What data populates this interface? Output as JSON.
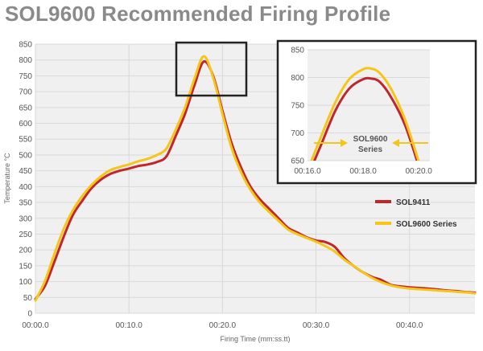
{
  "title": "SOL9600 Recommended Firing Profile",
  "colors": {
    "sol9411": "#c0272d",
    "sol9600": "#f5c518",
    "grid": "#d9d9d9",
    "plot_bg": "#f0f0f0"
  },
  "chart_data": [
    {
      "type": "line",
      "title": "SOL9600 Recommended Firing Profile",
      "xlabel": "Firing Time (mm:ss.tt)",
      "ylabel": "Temperature °C",
      "xlim": [
        0,
        47
      ],
      "ylim": [
        0,
        850
      ],
      "x_ticks": [
        0,
        10,
        20,
        30,
        40
      ],
      "x_tick_labels": [
        "00:00.0",
        "00:10.0",
        "00:20.0",
        "00:30.0",
        "00:40.0"
      ],
      "y_ticks": [
        0,
        50,
        100,
        150,
        200,
        250,
        300,
        350,
        400,
        450,
        500,
        550,
        600,
        650,
        700,
        750,
        800,
        850
      ],
      "grid": true,
      "legend": "right",
      "series": [
        {
          "name": "SOL9411",
          "x": [
            0,
            1,
            2,
            3,
            4,
            5,
            6,
            7,
            8,
            9,
            10,
            11,
            12,
            13,
            14,
            15,
            16,
            17,
            18,
            19,
            20,
            21,
            22,
            23,
            24,
            25,
            26,
            27,
            28,
            29,
            30,
            31,
            32,
            33,
            34,
            35,
            36,
            37,
            38,
            39,
            40,
            41,
            42,
            43,
            44,
            45,
            46,
            47
          ],
          "y": [
            45,
            85,
            160,
            240,
            310,
            355,
            395,
            422,
            440,
            450,
            457,
            465,
            470,
            478,
            495,
            560,
            630,
            720,
            795,
            750,
            640,
            535,
            460,
            400,
            360,
            330,
            300,
            270,
            255,
            240,
            230,
            225,
            210,
            175,
            150,
            130,
            115,
            105,
            90,
            85,
            82,
            80,
            78,
            75,
            72,
            70,
            67,
            65
          ]
        },
        {
          "name": "SOL9600 Series",
          "x": [
            0,
            1,
            2,
            3,
            4,
            5,
            6,
            7,
            8,
            9,
            10,
            11,
            12,
            13,
            14,
            15,
            16,
            17,
            18,
            19,
            20,
            21,
            22,
            23,
            24,
            25,
            26,
            27,
            28,
            29,
            30,
            31,
            32,
            33,
            34,
            35,
            36,
            37,
            38,
            39,
            40,
            41,
            42,
            43,
            44,
            45,
            46,
            47
          ],
          "y": [
            40,
            100,
            185,
            265,
            325,
            370,
            405,
            432,
            452,
            462,
            470,
            480,
            488,
            500,
            520,
            580,
            650,
            740,
            812,
            745,
            630,
            520,
            445,
            390,
            350,
            320,
            292,
            265,
            250,
            238,
            226,
            212,
            195,
            170,
            150,
            130,
            112,
            98,
            88,
            82,
            78,
            76,
            74,
            72,
            70,
            68,
            66,
            63
          ]
        }
      ]
    },
    {
      "type": "line",
      "title": "",
      "xlim": [
        16,
        20.4
      ],
      "ylim": [
        650,
        850
      ],
      "x_ticks": [
        16,
        18,
        20
      ],
      "x_tick_labels": [
        "00:16.0",
        "00:18.0",
        "00:20.0"
      ],
      "y_ticks": [
        650,
        700,
        750,
        800,
        850
      ],
      "annotation": {
        "line1": "SOL9600",
        "line2": "Series"
      },
      "series": [
        {
          "name": "SOL9411",
          "x": [
            16,
            16.5,
            17,
            17.5,
            18,
            18.3,
            18.6,
            19,
            19.5,
            20
          ],
          "y": [
            620,
            680,
            740,
            780,
            797,
            798,
            792,
            765,
            715,
            640
          ]
        },
        {
          "name": "SOL9600 Series",
          "x": [
            16,
            16.5,
            17,
            17.5,
            18,
            18.3,
            18.6,
            19,
            19.5,
            20
          ],
          "y": [
            632,
            695,
            755,
            797,
            815,
            816,
            808,
            780,
            725,
            648
          ]
        }
      ]
    }
  ]
}
